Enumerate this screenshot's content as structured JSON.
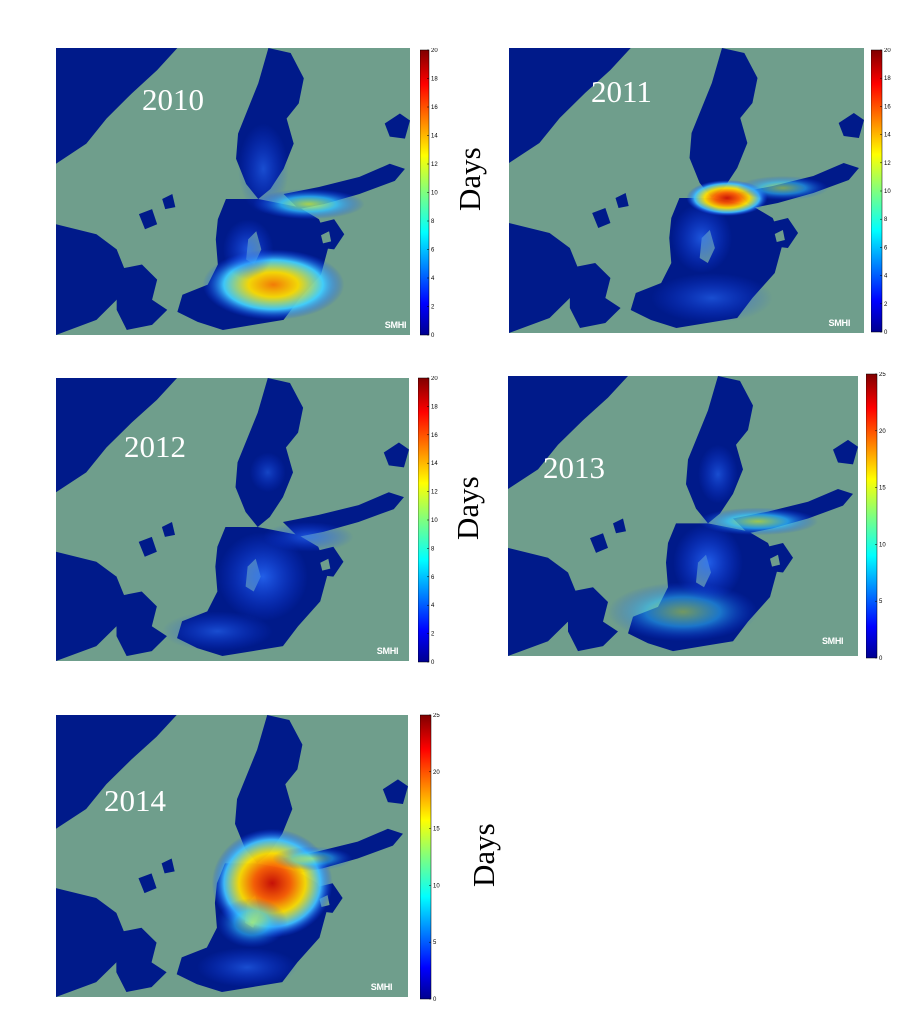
{
  "figure": {
    "colormap": "jet",
    "land_color": "#6f9e8c",
    "sea_color": "#001a8a",
    "watermark": "SMHI",
    "colorbar_label": "Days"
  },
  "panels": [
    {
      "year": "2010",
      "cbar_ticks": [
        "20",
        "18",
        "16",
        "14",
        "12",
        "10",
        "8",
        "6",
        "4",
        "2",
        "0"
      ],
      "cbar_max": 20,
      "show_days_label": true
    },
    {
      "year": "2011",
      "cbar_ticks": [
        "20",
        "18",
        "16",
        "14",
        "12",
        "10",
        "8",
        "6",
        "4",
        "2",
        "0"
      ],
      "cbar_max": 20,
      "show_days_label": false
    },
    {
      "year": "2012",
      "cbar_ticks": [
        "20",
        "18",
        "16",
        "14",
        "12",
        "10",
        "8",
        "6",
        "4",
        "2",
        "0"
      ],
      "cbar_max": 20,
      "show_days_label": true
    },
    {
      "year": "2013",
      "cbar_ticks": [
        "25",
        "20",
        "15",
        "10",
        "5",
        "0"
      ],
      "cbar_max": 25,
      "show_days_label": false
    },
    {
      "year": "2014",
      "cbar_ticks": [
        "25",
        "20",
        "15",
        "10",
        "5",
        "0"
      ],
      "cbar_max": 25,
      "show_days_label": true
    }
  ]
}
